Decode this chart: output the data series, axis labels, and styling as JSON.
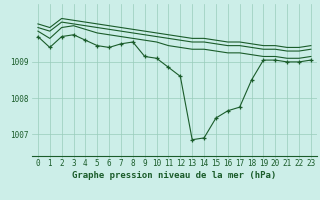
{
  "background_color": "#cceee8",
  "grid_color": "#99ccbb",
  "line_color": "#1a5c2a",
  "xlabel": "Graphe pression niveau de la mer (hPa)",
  "xlabel_fontsize": 6.5,
  "tick_fontsize": 5.5,
  "ylim": [
    1006.4,
    1010.6
  ],
  "xlim": [
    -0.5,
    23.5
  ],
  "yticks": [
    1007,
    1008,
    1009
  ],
  "xticks": [
    0,
    1,
    2,
    3,
    4,
    5,
    6,
    7,
    8,
    9,
    10,
    11,
    12,
    13,
    14,
    15,
    16,
    17,
    18,
    19,
    20,
    21,
    22,
    23
  ],
  "series": [
    {
      "x": [
        0,
        1,
        2,
        3,
        4,
        5,
        6,
        7,
        8,
        9,
        10,
        11,
        12,
        13,
        14,
        15,
        16,
        17,
        18,
        19,
        20,
        21,
        22,
        23
      ],
      "y": [
        1010.05,
        1009.95,
        1010.2,
        1010.15,
        1010.1,
        1010.05,
        1010.0,
        1009.95,
        1009.9,
        1009.85,
        1009.8,
        1009.75,
        1009.7,
        1009.65,
        1009.65,
        1009.6,
        1009.55,
        1009.55,
        1009.5,
        1009.45,
        1009.45,
        1009.4,
        1009.4,
        1009.45
      ],
      "has_markers": false
    },
    {
      "x": [
        0,
        1,
        2,
        3,
        4,
        5,
        6,
        7,
        8,
        9,
        10,
        11,
        12,
        13,
        14,
        15,
        16,
        17,
        18,
        19,
        20,
        21,
        22,
        23
      ],
      "y": [
        1009.95,
        1009.85,
        1010.1,
        1010.05,
        1010.0,
        1009.95,
        1009.9,
        1009.85,
        1009.8,
        1009.75,
        1009.7,
        1009.65,
        1009.6,
        1009.55,
        1009.55,
        1009.5,
        1009.45,
        1009.45,
        1009.4,
        1009.35,
        1009.35,
        1009.3,
        1009.3,
        1009.35
      ],
      "has_markers": false
    },
    {
      "x": [
        0,
        1,
        2,
        3,
        4,
        5,
        6,
        7,
        8,
        9,
        10,
        11,
        12,
        13,
        14,
        15,
        16,
        17,
        18,
        19,
        20,
        21,
        22,
        23
      ],
      "y": [
        1009.85,
        1009.65,
        1009.95,
        1010.0,
        1009.9,
        1009.8,
        1009.75,
        1009.7,
        1009.65,
        1009.6,
        1009.55,
        1009.45,
        1009.4,
        1009.35,
        1009.35,
        1009.3,
        1009.25,
        1009.25,
        1009.2,
        1009.15,
        1009.15,
        1009.1,
        1009.1,
        1009.15
      ],
      "has_markers": false
    },
    {
      "x": [
        0,
        1,
        2,
        3,
        4,
        5,
        6,
        7,
        8,
        9,
        10,
        11,
        12,
        13,
        14,
        15,
        16,
        17,
        18,
        19,
        20,
        21,
        22,
        23
      ],
      "y": [
        1009.7,
        1009.4,
        1009.7,
        1009.75,
        1009.6,
        1009.45,
        1009.4,
        1009.5,
        1009.55,
        1009.15,
        1009.1,
        1008.85,
        1008.6,
        1006.85,
        1006.9,
        1007.45,
        1007.65,
        1007.75,
        1008.5,
        1009.05,
        1009.05,
        1009.0,
        1009.0,
        1009.05
      ],
      "has_markers": true
    }
  ]
}
